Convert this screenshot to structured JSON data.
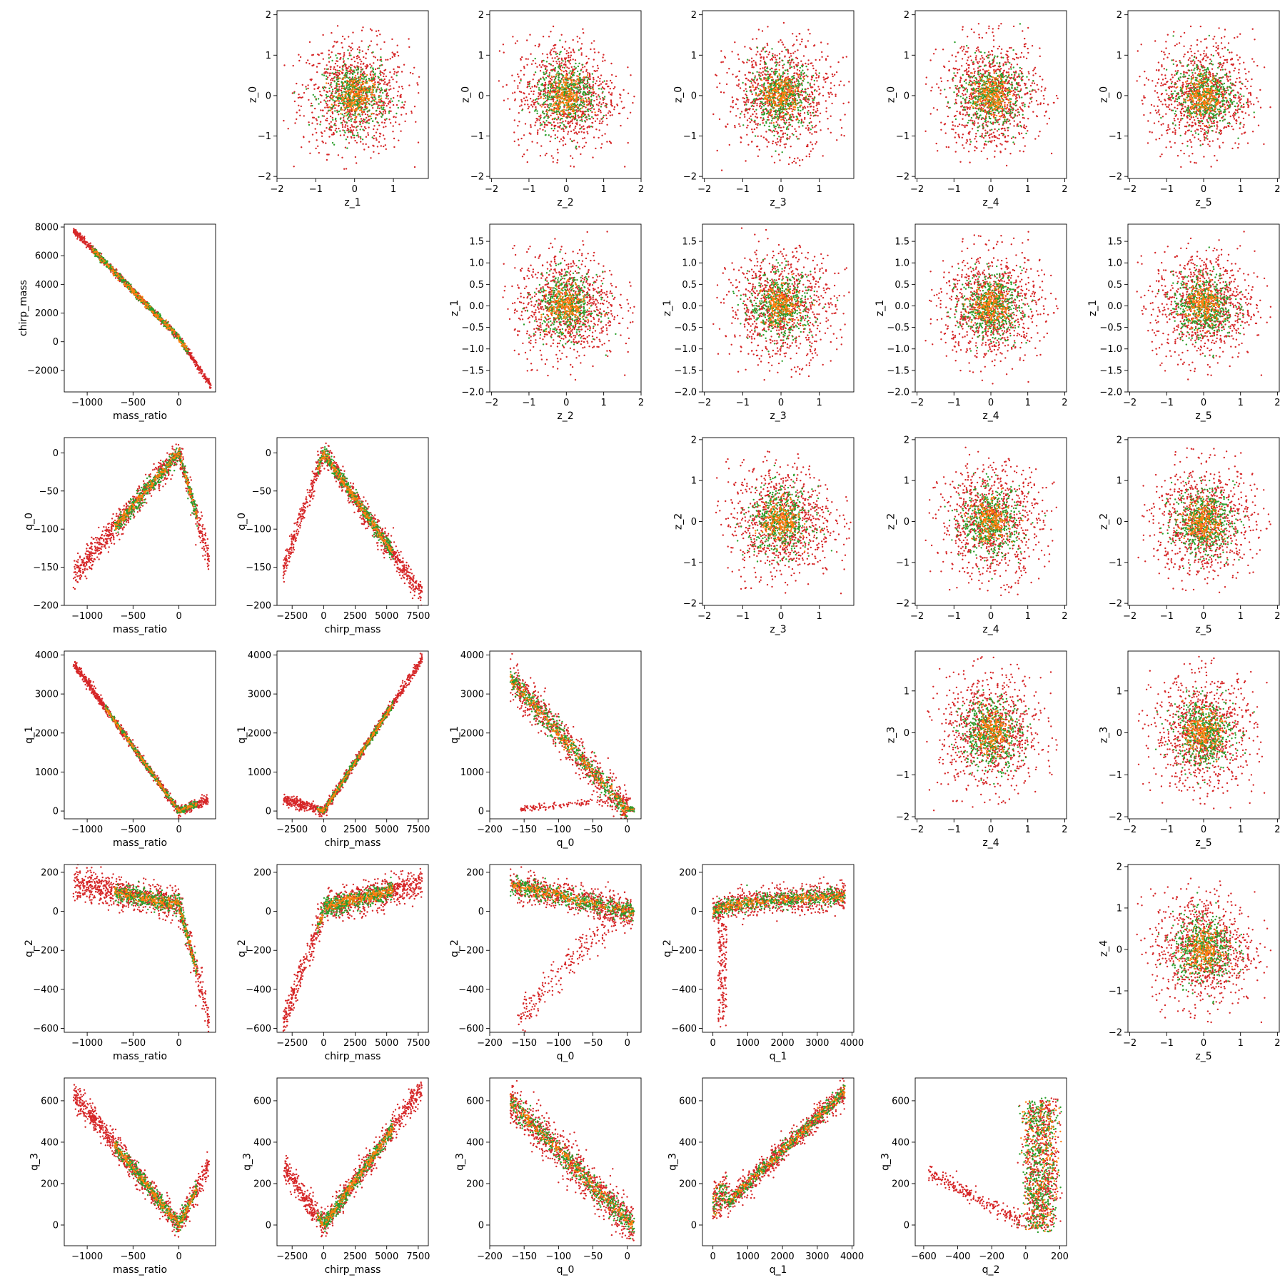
{
  "figure": {
    "type": "pairplot",
    "series_colors": {
      "red": "#d62728",
      "green": "#2ca02c",
      "orange": "#ff7f0e"
    }
  },
  "chart_data": [
    {
      "type": "scatter",
      "xlabel": "z_1",
      "ylabel": "z_0",
      "xlim": [
        -2,
        1.9
      ],
      "ylim": [
        -2.05,
        2.1
      ],
      "xticks": [
        "−2",
        "−1",
        "0",
        "1"
      ],
      "yticks": [
        "−2",
        "−1",
        "0",
        "1",
        "2"
      ],
      "shape": "blob",
      "spread": [
        0.6,
        0.6
      ]
    },
    {
      "type": "scatter",
      "xlabel": "z_2",
      "ylabel": "z_0",
      "xlim": [
        -2.05,
        2
      ],
      "ylim": [
        -2.05,
        2.1
      ],
      "xticks": [
        "−2",
        "−1",
        "0",
        "1",
        "2"
      ],
      "yticks": [
        "−2",
        "−1",
        "0",
        "1",
        "2"
      ],
      "shape": "blob",
      "spread": [
        0.6,
        0.6
      ]
    },
    {
      "type": "scatter",
      "xlabel": "z_3",
      "ylabel": "z_0",
      "xlim": [
        -2.05,
        1.9
      ],
      "ylim": [
        -2.05,
        2.1
      ],
      "xticks": [
        "−2",
        "−1",
        "0",
        "1"
      ],
      "yticks": [
        "−2",
        "−1",
        "0",
        "1",
        "2"
      ],
      "shape": "blob",
      "spread": [
        0.6,
        0.6
      ]
    },
    {
      "type": "scatter",
      "xlabel": "z_4",
      "ylabel": "z_0",
      "xlim": [
        -2.05,
        2.05
      ],
      "ylim": [
        -2.05,
        2.1
      ],
      "xticks": [
        "−2",
        "−1",
        "0",
        "1",
        "2"
      ],
      "yticks": [
        "−2",
        "−1",
        "0",
        "1",
        "2"
      ],
      "shape": "blob",
      "spread": [
        0.6,
        0.6
      ]
    },
    {
      "type": "scatter",
      "xlabel": "z_5",
      "ylabel": "z_0",
      "xlim": [
        -2.05,
        2.05
      ],
      "ylim": [
        -2.05,
        2.1
      ],
      "xticks": [
        "−2",
        "−1",
        "0",
        "1",
        "2"
      ],
      "yticks": [
        "−2",
        "−1",
        "0",
        "1",
        "2"
      ],
      "shape": "blob",
      "spread": [
        0.6,
        0.6
      ]
    },
    {
      "type": "scatter",
      "xlabel": "mass_ratio",
      "ylabel": "chirp_mass",
      "xlim": [
        -1250,
        400
      ],
      "ylim": [
        -3500,
        8200
      ],
      "xticks": [
        "−1000",
        "−500",
        "0"
      ],
      "yticks": [
        "−2000",
        "0",
        "2000",
        "4000",
        "6000",
        "8000"
      ],
      "shape": "mr_cm"
    },
    {
      "type": "scatter",
      "xlabel": "z_2",
      "ylabel": "z_1",
      "xlim": [
        -2.05,
        2
      ],
      "ylim": [
        -2.0,
        1.9
      ],
      "xticks": [
        "−2",
        "−1",
        "0",
        "1",
        "2"
      ],
      "yticks": [
        "−2.0",
        "−1.5",
        "−1.0",
        "−0.5",
        "0.0",
        "0.5",
        "1.0",
        "1.5"
      ],
      "shape": "blob",
      "spread": [
        0.6,
        0.55
      ]
    },
    {
      "type": "scatter",
      "xlabel": "z_3",
      "ylabel": "z_1",
      "xlim": [
        -2.05,
        1.9
      ],
      "ylim": [
        -2.0,
        1.9
      ],
      "xticks": [
        "−2",
        "−1",
        "0",
        "1"
      ],
      "yticks": [
        "−2.0",
        "−1.5",
        "−1.0",
        "−0.5",
        "0.0",
        "0.5",
        "1.0",
        "1.5"
      ],
      "shape": "blob",
      "spread": [
        0.6,
        0.55
      ]
    },
    {
      "type": "scatter",
      "xlabel": "z_4",
      "ylabel": "z_1",
      "xlim": [
        -2.05,
        2.05
      ],
      "ylim": [
        -2.0,
        1.9
      ],
      "xticks": [
        "−2",
        "−1",
        "0",
        "1",
        "2"
      ],
      "yticks": [
        "−2.0",
        "−1.5",
        "−1.0",
        "−0.5",
        "0.0",
        "0.5",
        "1.0",
        "1.5"
      ],
      "shape": "blob",
      "spread": [
        0.6,
        0.55
      ]
    },
    {
      "type": "scatter",
      "xlabel": "z_5",
      "ylabel": "z_1",
      "xlim": [
        -2.05,
        2.05
      ],
      "ylim": [
        -2.0,
        1.9
      ],
      "xticks": [
        "−2",
        "−1",
        "0",
        "1",
        "2"
      ],
      "yticks": [
        "−2.0",
        "−1.5",
        "−1.0",
        "−0.5",
        "0.0",
        "0.5",
        "1.0",
        "1.5"
      ],
      "shape": "blob",
      "spread": [
        0.6,
        0.55
      ]
    },
    {
      "type": "scatter",
      "xlabel": "mass_ratio",
      "ylabel": "q_0",
      "xlim": [
        -1250,
        400
      ],
      "ylim": [
        -200,
        20
      ],
      "xticks": [
        "−1000",
        "−500",
        "0"
      ],
      "yticks": [
        "−200",
        "−150",
        "−100",
        "−50",
        "0"
      ],
      "shape": "mr_q0"
    },
    {
      "type": "scatter",
      "xlabel": "chirp_mass",
      "ylabel": "q_0",
      "xlim": [
        -3700,
        8300
      ],
      "ylim": [
        -200,
        20
      ],
      "xticks": [
        "−2500",
        "0",
        "2500",
        "5000",
        "7500"
      ],
      "yticks": [
        "−200",
        "−150",
        "−100",
        "−50",
        "0"
      ],
      "shape": "cm_q0"
    },
    {
      "type": "scatter",
      "xlabel": "z_3",
      "ylabel": "z_2",
      "xlim": [
        -2.05,
        1.9
      ],
      "ylim": [
        -2.05,
        2.05
      ],
      "xticks": [
        "−2",
        "−1",
        "0",
        "1"
      ],
      "yticks": [
        "−2",
        "−1",
        "0",
        "1",
        "2"
      ],
      "shape": "blob",
      "spread": [
        0.6,
        0.6
      ]
    },
    {
      "type": "scatter",
      "xlabel": "z_4",
      "ylabel": "z_2",
      "xlim": [
        -2.05,
        2.05
      ],
      "ylim": [
        -2.05,
        2.05
      ],
      "xticks": [
        "−2",
        "−1",
        "0",
        "1",
        "2"
      ],
      "yticks": [
        "−2",
        "−1",
        "0",
        "1",
        "2"
      ],
      "shape": "blob",
      "spread": [
        0.6,
        0.6
      ]
    },
    {
      "type": "scatter",
      "xlabel": "z_5",
      "ylabel": "z_2",
      "xlim": [
        -2.05,
        2.05
      ],
      "ylim": [
        -2.05,
        2.05
      ],
      "xticks": [
        "−2",
        "−1",
        "0",
        "1",
        "2"
      ],
      "yticks": [
        "−2",
        "−1",
        "0",
        "1",
        "2"
      ],
      "shape": "blob",
      "spread": [
        0.6,
        0.6
      ]
    },
    {
      "type": "scatter",
      "xlabel": "mass_ratio",
      "ylabel": "q_1",
      "xlim": [
        -1250,
        400
      ],
      "ylim": [
        -200,
        4100
      ],
      "xticks": [
        "−1000",
        "−500",
        "0"
      ],
      "yticks": [
        "0",
        "1000",
        "2000",
        "3000",
        "4000"
      ],
      "shape": "mr_q1"
    },
    {
      "type": "scatter",
      "xlabel": "chirp_mass",
      "ylabel": "q_1",
      "xlim": [
        -3700,
        8300
      ],
      "ylim": [
        -200,
        4100
      ],
      "xticks": [
        "−2500",
        "0",
        "2500",
        "5000",
        "7500"
      ],
      "yticks": [
        "0",
        "1000",
        "2000",
        "3000",
        "4000"
      ],
      "shape": "cm_q1"
    },
    {
      "type": "scatter",
      "xlabel": "q_0",
      "ylabel": "q_1",
      "xlim": [
        -200,
        20
      ],
      "ylim": [
        -200,
        4100
      ],
      "xticks": [
        "−200",
        "−150",
        "−100",
        "−50",
        "0"
      ],
      "yticks": [
        "0",
        "1000",
        "2000",
        "3000",
        "4000"
      ],
      "shape": "q0_q1"
    },
    {
      "type": "scatter",
      "xlabel": "z_4",
      "ylabel": "z_3",
      "xlim": [
        -2.05,
        2.05
      ],
      "ylim": [
        -2.05,
        1.95
      ],
      "xticks": [
        "−2",
        "−1",
        "0",
        "1",
        "2"
      ],
      "yticks": [
        "−2",
        "−1",
        "0",
        "1"
      ],
      "shape": "blob",
      "spread": [
        0.6,
        0.6
      ]
    },
    {
      "type": "scatter",
      "xlabel": "z_5",
      "ylabel": "z_3",
      "xlim": [
        -2.05,
        2.05
      ],
      "ylim": [
        -2.05,
        1.95
      ],
      "xticks": [
        "−2",
        "−1",
        "0",
        "1",
        "2"
      ],
      "yticks": [
        "−2",
        "−1",
        "0",
        "1"
      ],
      "shape": "blob",
      "spread": [
        0.6,
        0.6
      ]
    },
    {
      "type": "scatter",
      "xlabel": "mass_ratio",
      "ylabel": "q_2",
      "xlim": [
        -1250,
        400
      ],
      "ylim": [
        -620,
        240
      ],
      "xticks": [
        "−1000",
        "−500",
        "0"
      ],
      "yticks": [
        "−600",
        "−400",
        "−200",
        "0",
        "200"
      ],
      "shape": "mr_q2"
    },
    {
      "type": "scatter",
      "xlabel": "chirp_mass",
      "ylabel": "q_2",
      "xlim": [
        -3700,
        8300
      ],
      "ylim": [
        -620,
        240
      ],
      "xticks": [
        "−2500",
        "0",
        "2500",
        "5000",
        "7500"
      ],
      "yticks": [
        "−600",
        "−400",
        "−200",
        "0",
        "200"
      ],
      "shape": "cm_q2"
    },
    {
      "type": "scatter",
      "xlabel": "q_0",
      "ylabel": "q_2",
      "xlim": [
        -200,
        20
      ],
      "ylim": [
        -620,
        240
      ],
      "xticks": [
        "−200",
        "−150",
        "−100",
        "−50",
        "0"
      ],
      "yticks": [
        "−600",
        "−400",
        "−200",
        "0",
        "200"
      ],
      "shape": "q0_q2"
    },
    {
      "type": "scatter",
      "xlabel": "q_1",
      "ylabel": "q_2",
      "xlim": [
        -300,
        4050
      ],
      "ylim": [
        -620,
        240
      ],
      "xticks": [
        "0",
        "1000",
        "2000",
        "3000",
        "4000"
      ],
      "yticks": [
        "−600",
        "−400",
        "−200",
        "0",
        "200"
      ],
      "shape": "q1_q2"
    },
    {
      "type": "scatter",
      "xlabel": "z_5",
      "ylabel": "z_4",
      "xlim": [
        -2.05,
        2.05
      ],
      "ylim": [
        -2.0,
        2.05
      ],
      "xticks": [
        "−2",
        "−1",
        "0",
        "1",
        "2"
      ],
      "yticks": [
        "−2",
        "−1",
        "0",
        "1",
        "2"
      ],
      "shape": "blob",
      "spread": [
        0.6,
        0.6
      ]
    },
    {
      "type": "scatter",
      "xlabel": "mass_ratio",
      "ylabel": "q_3",
      "xlim": [
        -1250,
        400
      ],
      "ylim": [
        -100,
        710
      ],
      "xticks": [
        "−1000",
        "−500",
        "0"
      ],
      "yticks": [
        "0",
        "200",
        "400",
        "600"
      ],
      "shape": "mr_q3"
    },
    {
      "type": "scatter",
      "xlabel": "chirp_mass",
      "ylabel": "q_3",
      "xlim": [
        -3700,
        8300
      ],
      "ylim": [
        -100,
        710
      ],
      "xticks": [
        "−2500",
        "0",
        "2500",
        "5000",
        "7500"
      ],
      "yticks": [
        "0",
        "200",
        "400",
        "600"
      ],
      "shape": "cm_q3"
    },
    {
      "type": "scatter",
      "xlabel": "q_0",
      "ylabel": "q_3",
      "xlim": [
        -200,
        20
      ],
      "ylim": [
        -100,
        710
      ],
      "xticks": [
        "−200",
        "−150",
        "−100",
        "−50",
        "0"
      ],
      "yticks": [
        "0",
        "200",
        "400",
        "600"
      ],
      "shape": "q0_q3"
    },
    {
      "type": "scatter",
      "xlabel": "q_1",
      "ylabel": "q_3",
      "xlim": [
        -300,
        4050
      ],
      "ylim": [
        -100,
        710
      ],
      "xticks": [
        "0",
        "1000",
        "2000",
        "3000",
        "4000"
      ],
      "yticks": [
        "0",
        "200",
        "400",
        "600"
      ],
      "shape": "q1_q3"
    },
    {
      "type": "scatter",
      "xlabel": "q_2",
      "ylabel": "q_3",
      "xlim": [
        -650,
        240
      ],
      "ylim": [
        -100,
        710
      ],
      "xticks": [
        "−600",
        "−400",
        "−200",
        "0",
        "200"
      ],
      "yticks": [
        "0",
        "200",
        "400",
        "600"
      ],
      "shape": "q2_q3"
    }
  ]
}
